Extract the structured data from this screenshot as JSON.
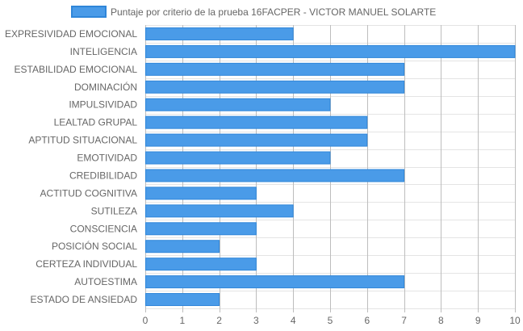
{
  "chart_data": {
    "type": "bar",
    "orientation": "horizontal",
    "legend": {
      "label": "Puntaje por criterio de la prueba 16FACPER - VICTOR MANUEL  SOLARTE",
      "position": "top-center"
    },
    "series": [
      {
        "name": "Puntaje por criterio de la prueba 16FACPER - VICTOR MANUEL  SOLARTE",
        "color": "#4a9be8",
        "border_color": "#2f86d9",
        "values": [
          4,
          10,
          7,
          7,
          5,
          6,
          6,
          5,
          7,
          3,
          4,
          3,
          2,
          3,
          7,
          2
        ]
      }
    ],
    "categories": [
      "EXPRESIVIDAD EMOCIONAL",
      "INTELIGENCIA",
      "ESTABILIDAD EMOCIONAL",
      "DOMINACIÓN",
      "IMPULSIVIDAD",
      "LEALTAD GRUPAL",
      "APTITUD SITUACIONAL",
      "EMOTIVIDAD",
      "CREDIBILIDAD",
      "ACTITUD COGNITIVA",
      "SUTILEZA",
      "CONSCIENCIA",
      "POSICIÓN SOCIAL",
      "CERTEZA INDIVIDUAL",
      "AUTOESTIMA",
      "ESTADO DE ANSIEDAD"
    ],
    "xlim": [
      0,
      10
    ],
    "xticks": [
      0,
      1,
      2,
      3,
      4,
      5,
      6,
      7,
      8,
      9,
      10
    ],
    "grid": true
  }
}
